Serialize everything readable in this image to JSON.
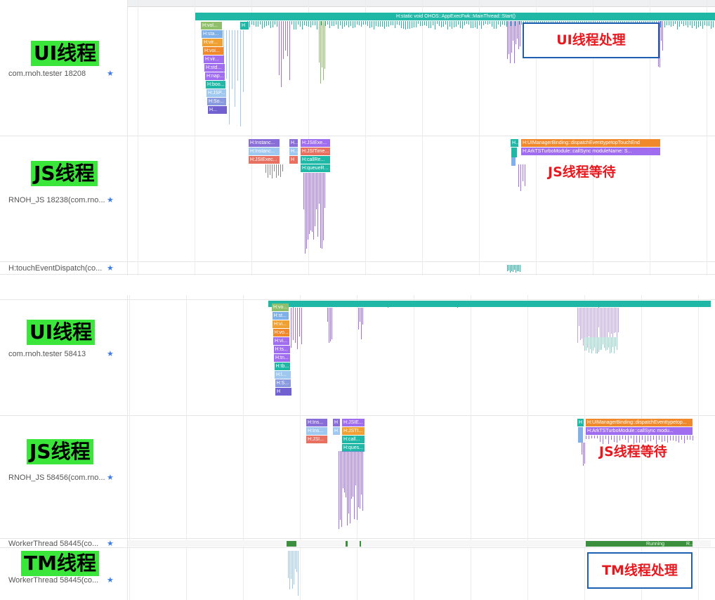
{
  "top": {
    "big_ui": "UI线程",
    "big_js": "JS线程",
    "ui_thread_name": "com.rnoh.tester 18208",
    "js_thread_name": "RNOH_JS 18238(com.rno...",
    "touch_thread_name": "H:touchEventDispatch(co...",
    "main_slice": "H:static void OHOS::AppExecFwk::MainThread::Start()",
    "ui_stack": [
      "H:vol...",
      "H:sta...",
      "H:vir...",
      "H:voi...",
      "H:vir...",
      "H:std...",
      "H:nap...",
      "H:boo...",
      "H:JSP...",
      "H:So...",
      "H..."
    ],
    "h_small": "H",
    "js_stack_a": [
      "H:Instanc...",
      "H:Instanc...",
      "H:JSIExec..."
    ],
    "js_stack_b": [
      "H:JSIExe...",
      "H:JSITime...",
      "H:callRe...",
      "H:queueR..."
    ],
    "js_stack_b_prefix": [
      "H...",
      "H...",
      "H"
    ],
    "wait_slice_1": "H:UIManagerBinding::dispatchEventtypetopTouchEnd",
    "wait_slice_2": "H:ArkTSTurboModule::callSync moduleName: S...",
    "wait_prefix": "H...",
    "annot_ui": "UI线程处理",
    "annot_js": "JS线程等待"
  },
  "bottom": {
    "big_ui": "UI线程",
    "big_js": "JS线程",
    "big_tm": "TM线程",
    "ui_thread_name": "com.rnoh.tester 58413",
    "js_thread_name": "RNOH_JS 58456(com.rno...",
    "worker_thread_name": "WorkerThread 58445(co...",
    "worker_thread_name_2": "WorkerThread 58445(co...",
    "ui_stack": [
      "H:vo...",
      "H:st...",
      "H:vi...",
      "H:vo...",
      "H:vi...",
      "H:ts...",
      "H:tn...",
      "H:tb...",
      "H:l...",
      "H:S...",
      "H"
    ],
    "js_stack_a": [
      "H:Ins...",
      "H:Ins...",
      "H:JSI..."
    ],
    "js_stack_b": [
      "H:JSIE...",
      "H:JSTI...",
      "H:call...",
      "H:ques..."
    ],
    "js_stack_b_prefix": [
      "H",
      "H"
    ],
    "wait_slice_1": "H:UIManagerBinding::dispatchEventtypetop...",
    "wait_slice_2": "H:ArkTSTurboModule::callSync modu...",
    "wait_prefix": "H",
    "running_label": "Running",
    "running_tail": "R...",
    "annot_js": "JS线程等待",
    "annot_tm": "TM线程处理"
  },
  "colors": {
    "teal": "#1fb8a6",
    "green_label": "#39e639",
    "annot_red": "#e8181f",
    "annot_blue": "#1e5fb3",
    "star_blue": "#3d7ee8",
    "orange": "#f0892b",
    "purple": "#a06cf0",
    "running_green": "#3c8f3c"
  },
  "icons": {
    "star": "star-icon"
  }
}
